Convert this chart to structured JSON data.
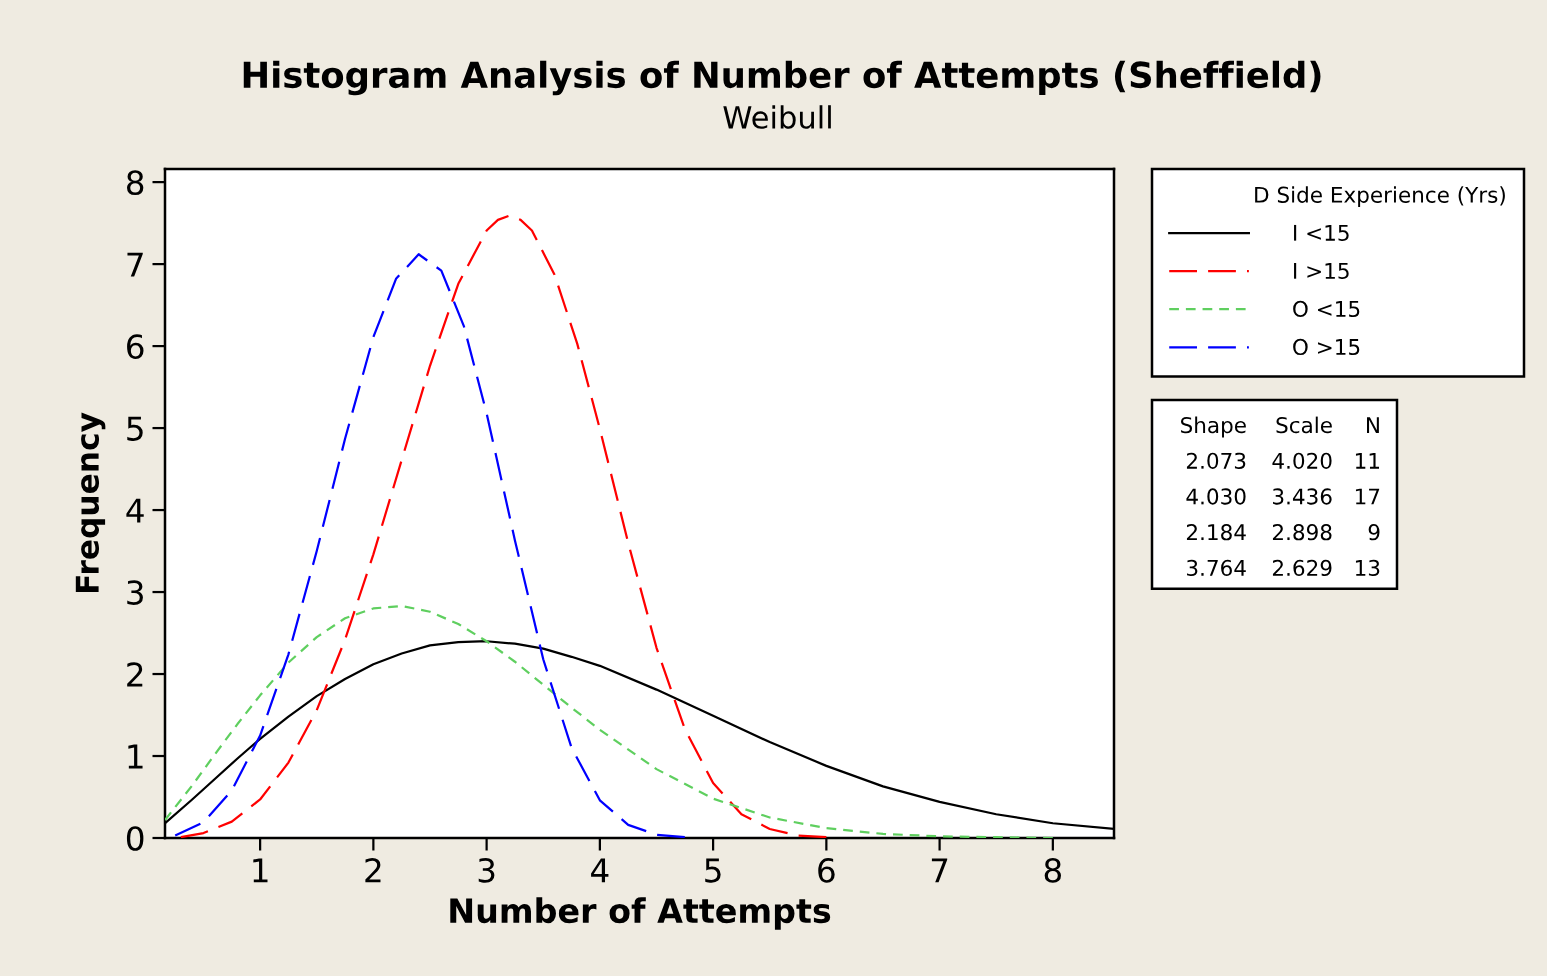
{
  "chart_data": {
    "type": "line",
    "title": "Histogram Analysis of Number of Attempts (Sheffield)",
    "subtitle": "Weibull",
    "xlabel": "Number of Attempts",
    "ylabel": "Frequency",
    "legend_title": "D Side Experience (Yrs)",
    "legend": "right",
    "xlim": [
      0.16,
      8.54
    ],
    "ylim": [
      0,
      8.16
    ],
    "xticks": [
      1,
      2,
      3,
      4,
      5,
      6,
      7,
      8
    ],
    "yticks": [
      0,
      1,
      2,
      3,
      4,
      5,
      6,
      7,
      8
    ],
    "annotations": [
      "Shape Scale N",
      "2.073 4.020 11",
      "4.030 3.436 17",
      "2.184 2.898 9",
      "3.764 2.629 13"
    ],
    "series": [
      {
        "name": "I <15",
        "color": "#000000",
        "line_style": "solid",
        "x": [
          0.16,
          0.4,
          0.6,
          0.8,
          1.0,
          1.25,
          1.5,
          1.75,
          2.0,
          2.25,
          2.5,
          2.75,
          3.0,
          3.25,
          3.5,
          3.75,
          4.0,
          4.5,
          5.0,
          5.5,
          6.0,
          6.5,
          7.0,
          7.5,
          8.0,
          8.54
        ],
        "values": [
          0.18,
          0.47,
          0.72,
          0.97,
          1.21,
          1.48,
          1.73,
          1.94,
          2.12,
          2.25,
          2.35,
          2.39,
          2.4,
          2.37,
          2.31,
          2.21,
          2.1,
          1.81,
          1.49,
          1.17,
          0.88,
          0.63,
          0.44,
          0.29,
          0.18,
          0.11
        ]
      },
      {
        "name": "I >15",
        "color": "#ff0000",
        "line_style": "dashed",
        "x": [
          0.3,
          0.5,
          0.75,
          1.0,
          1.25,
          1.5,
          1.75,
          2.0,
          2.25,
          2.5,
          2.75,
          3.0,
          3.1,
          3.2,
          3.3,
          3.4,
          3.6,
          3.8,
          4.0,
          4.25,
          4.5,
          4.75,
          5.0,
          5.25,
          5.5,
          5.75,
          6.0
        ],
        "values": [
          0.01,
          0.06,
          0.2,
          0.47,
          0.92,
          1.56,
          2.42,
          3.46,
          4.61,
          5.76,
          6.76,
          7.41,
          7.54,
          7.59,
          7.54,
          7.41,
          6.87,
          6.03,
          4.99,
          3.6,
          2.32,
          1.33,
          0.67,
          0.29,
          0.11,
          0.03,
          0.01
        ]
      },
      {
        "name": "O <15",
        "color": "#5fcf5f",
        "line_style": "dotted",
        "x": [
          0.16,
          0.4,
          0.6,
          0.8,
          1.0,
          1.25,
          1.5,
          1.75,
          2.0,
          2.25,
          2.5,
          2.75,
          3.0,
          3.25,
          3.5,
          3.75,
          4.0,
          4.5,
          5.0,
          5.5,
          6.0,
          6.5,
          7.0,
          7.5,
          8.0
        ],
        "values": [
          0.22,
          0.64,
          1.02,
          1.39,
          1.74,
          2.14,
          2.45,
          2.68,
          2.8,
          2.83,
          2.76,
          2.61,
          2.4,
          2.15,
          1.87,
          1.59,
          1.32,
          0.84,
          0.48,
          0.25,
          0.12,
          0.05,
          0.02,
          0.01,
          0.0
        ]
      },
      {
        "name": "O >15",
        "color": "#0000ff",
        "line_style": "dashed",
        "x": [
          0.25,
          0.5,
          0.75,
          1.0,
          1.25,
          1.5,
          1.75,
          2.0,
          2.2,
          2.4,
          2.6,
          2.8,
          3.0,
          3.25,
          3.5,
          3.75,
          4.0,
          4.25,
          4.5,
          4.75
        ],
        "values": [
          0.03,
          0.19,
          0.58,
          1.25,
          2.24,
          3.5,
          4.87,
          6.11,
          6.82,
          7.12,
          6.92,
          6.24,
          5.18,
          3.63,
          2.18,
          1.1,
          0.46,
          0.16,
          0.04,
          0.01
        ]
      }
    ]
  }
}
